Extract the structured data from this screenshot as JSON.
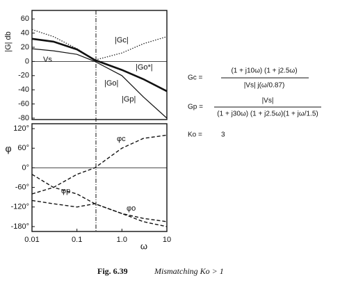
{
  "chart_data": [
    {
      "type": "line",
      "y_label": "|G| db",
      "xlog": true,
      "xlim": [
        0.01,
        10
      ],
      "ylim": [
        -82,
        72
      ],
      "yticks": [
        60,
        40,
        20,
        0,
        -20,
        -40,
        -60,
        -80
      ],
      "x": [
        0.01,
        0.03,
        0.1,
        0.25,
        1,
        3,
        10
      ],
      "series": [
        {
          "name": "|Gc|",
          "color": "#222",
          "style": "dotted",
          "width": 1.3,
          "values": [
            45,
            35,
            18,
            2,
            12,
            25,
            35
          ]
        },
        {
          "name": "|Go|",
          "color": "#111",
          "style": "solid",
          "width": 2.6,
          "values": [
            32,
            28,
            17,
            2,
            -12,
            -25,
            -42
          ]
        },
        {
          "name": "|Gp|",
          "color": "#111",
          "style": "solid",
          "width": 1.2,
          "values": [
            18,
            15,
            10,
            0,
            -20,
            -50,
            -80
          ]
        }
      ],
      "annotations": [
        "|Go*|",
        "Vs"
      ]
    },
    {
      "type": "line",
      "y_label": "φ",
      "x_label": "ω",
      "xlog": true,
      "xlim": [
        0.01,
        10
      ],
      "ylim": [
        -195,
        135
      ],
      "yticks": [
        {
          "value": 120,
          "label": "120°"
        },
        {
          "value": 60,
          "label": "60°"
        },
        {
          "value": 0,
          "label": "0°"
        },
        {
          "value": -60,
          "label": "-60°"
        },
        {
          "value": -120,
          "label": "-120°"
        },
        {
          "value": -180,
          "label": "-180°"
        }
      ],
      "xticks": [
        0.01,
        0.1,
        {
          "value": 1,
          "label": "1.0"
        },
        10
      ],
      "x": [
        0.01,
        0.03,
        0.1,
        0.25,
        1,
        3,
        10
      ],
      "series": [
        {
          "name": "φc",
          "color": "#111",
          "style": "dashed",
          "width": 1.4,
          "values": [
            -80,
            -60,
            -20,
            0,
            60,
            90,
            100
          ]
        },
        {
          "name": "φp",
          "color": "#111",
          "style": "dashed",
          "width": 1.4,
          "values": [
            -20,
            -60,
            -80,
            -110,
            -140,
            -165,
            -180
          ]
        },
        {
          "name": "φo",
          "color": "#111",
          "style": "dashed",
          "width": 1.4,
          "values": [
            -100,
            -110,
            -120,
            -110,
            -140,
            -155,
            -165
          ]
        }
      ]
    }
  ],
  "equations": {
    "gc_lhs": "Gc =",
    "gc_num": "(1 + j10ω) (1 + j2.5ω)",
    "gc_den": "|Vs| j(ω/0.87)",
    "gp_lhs": "Gp =",
    "gp_num": "|Vs|",
    "gp_den": "(1 + j30ω) (1 + j2.5ω)(1 + jω/1.5)",
    "ko_lhs": "Ko =",
    "ko_val": "3"
  },
  "caption": {
    "number": "Fig. 6.39",
    "text": "Mismatching Ko > 1"
  }
}
